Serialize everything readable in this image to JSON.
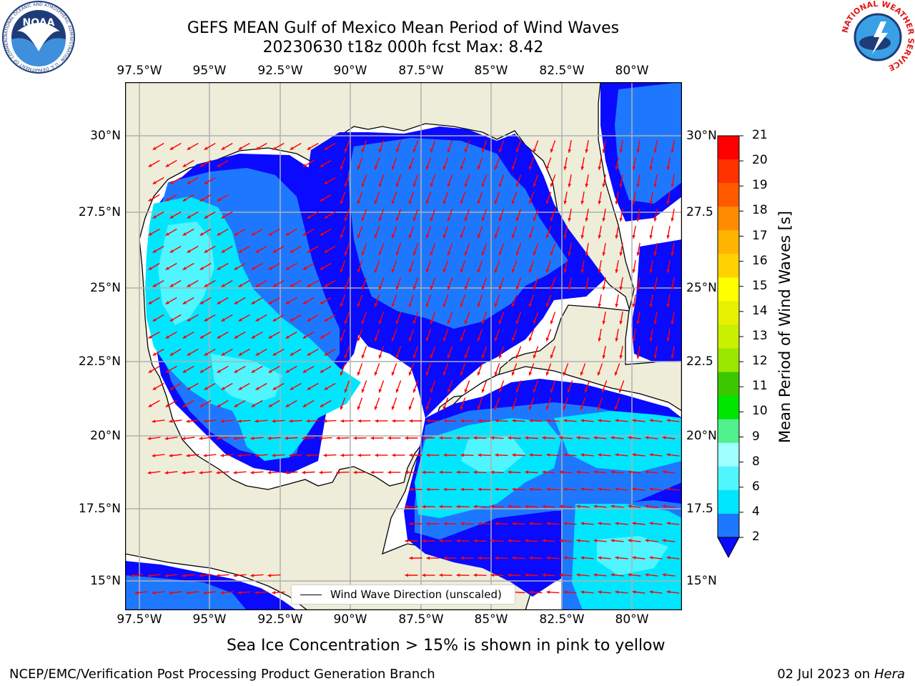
{
  "title": {
    "line1": "GEFS MEAN Gulf of Mexico Mean Period of Wind Waves",
    "line2": "20230630 t18z 000h fcst   Max: 8.42"
  },
  "map": {
    "lon_ticks": [
      "97.5°W",
      "95°W",
      "92.5°W",
      "90°W",
      "87.5°W",
      "85°W",
      "82.5°W",
      "80°W"
    ],
    "lat_ticks_left": [
      "30°N",
      "27.5°N",
      "25°N",
      "22.5°N",
      "20°N",
      "17.5°N",
      "15°N"
    ],
    "lat_ticks_right": [
      "30°N",
      "27.5",
      "25°N",
      "22.5",
      "20°N",
      "17.5",
      "15°N"
    ],
    "lon_range": [
      -98,
      -78.2
    ],
    "lat_range": [
      14,
      31.8
    ],
    "colors": {
      "land": "#eeedd9",
      "ocean_none": "#ffffff",
      "arrow": "#ff0000",
      "grid": "#b0b0b0"
    }
  },
  "legend": {
    "label": "Wind Wave Direction (unscaled)"
  },
  "colorbar": {
    "label": "Mean Period of Wind Waves [s]",
    "ticks": [
      "2",
      "4",
      "6",
      "8",
      "9",
      "10",
      "11",
      "12",
      "13",
      "14",
      "15",
      "16",
      "17",
      "18",
      "19",
      "20",
      "21"
    ],
    "colors": [
      "#0a0aff",
      "#1e78ff",
      "#00e6ff",
      "#50f5ff",
      "#a0ffff",
      "#50f08c",
      "#00e600",
      "#3cc800",
      "#9be600",
      "#c8f000",
      "#e6f000",
      "#ffff00",
      "#ffd200",
      "#ffb400",
      "#ff8c00",
      "#ff5a00",
      "#ff3200",
      "#ff0000"
    ]
  },
  "caption": "Sea Ice Concentration > 15% is shown in pink to yellow",
  "footer": {
    "left": "NCEP/EMC/Verification Post Processing Product Generation Branch",
    "date": "02 Jul 2023 on ",
    "host": "Hera"
  },
  "logos": {
    "noaa": {
      "text": "NOAA",
      "ring": "NATIONAL OCEANIC AND ATMOSPHERIC ADMINISTRATION · U.S. DEPARTMENT OF COMMERCE"
    },
    "nws": {
      "ring": "NATIONAL WEATHER SERVICE"
    }
  }
}
